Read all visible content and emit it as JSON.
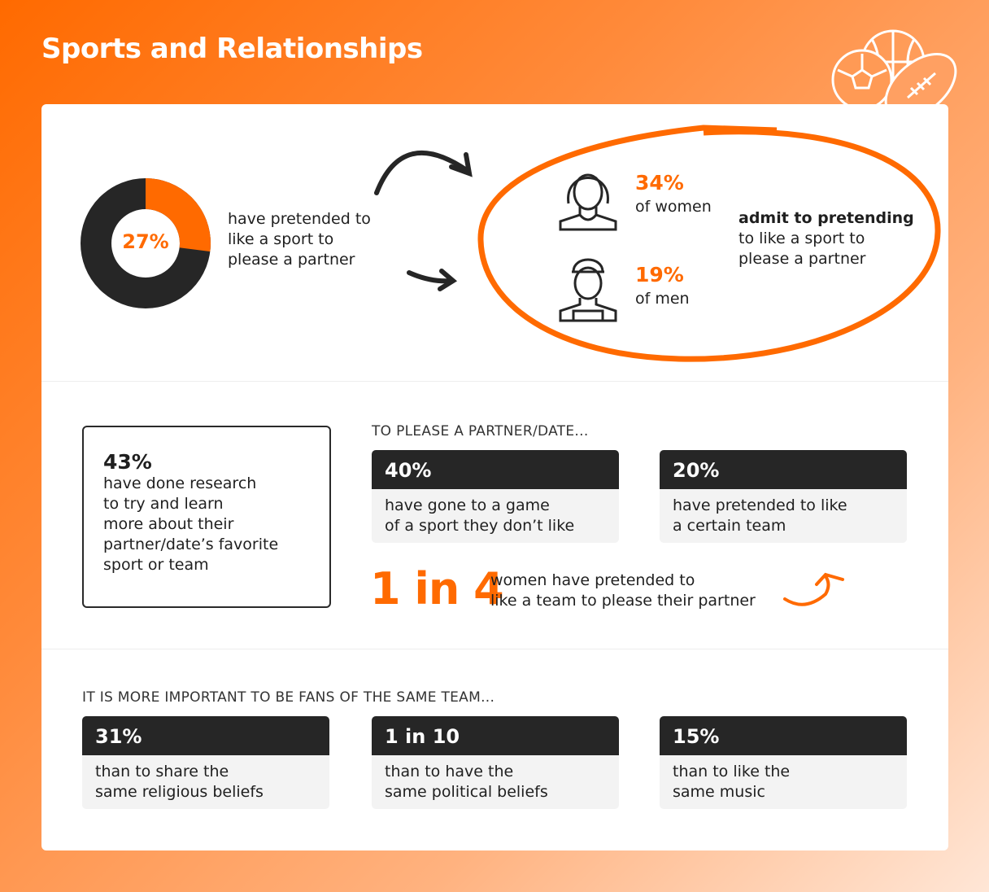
{
  "title": "Sports and Relationships",
  "colors": {
    "accent": "#ff6a00",
    "dark": "#262626"
  },
  "icons": [
    "sports-balls-icon",
    "woman-icon",
    "man-icon",
    "curved-arrow-icon"
  ],
  "donut": {
    "percent": 27,
    "label": "27%",
    "text": [
      "have pretended to",
      "like a sport to",
      "please a partner"
    ]
  },
  "gender": {
    "women": {
      "pct": "34%",
      "label": "of women"
    },
    "men": {
      "pct": "19%",
      "label": "of men"
    },
    "bold": "admit to pretending",
    "rest": [
      "to like a sport to",
      "please a partner"
    ]
  },
  "research": {
    "pct": "43%",
    "lines": [
      "have done research",
      "to try and learn",
      "more about their",
      "partner/date’s favorite",
      "sport or team"
    ]
  },
  "please": {
    "heading": "TO PLEASE A PARTNER/DATE...",
    "stats": [
      {
        "value": "40%",
        "lines": [
          "have gone to a game",
          "of a sport they don’t like"
        ]
      },
      {
        "value": "20%",
        "lines": [
          "have pretended to like",
          "a certain team"
        ]
      }
    ],
    "ratio": "1 in 4",
    "ratio_text": [
      "women have pretended to",
      "like a team to please their partner"
    ]
  },
  "fans": {
    "heading": "IT IS MORE IMPORTANT TO BE FANS OF THE SAME TEAM...",
    "stats": [
      {
        "value": "31%",
        "lines": [
          "than to share the",
          "same religious beliefs"
        ]
      },
      {
        "value": "1 in 10",
        "lines": [
          "than to have the",
          "same political beliefs"
        ]
      },
      {
        "value": "15%",
        "lines": [
          "than to like the",
          "same music"
        ]
      }
    ]
  }
}
